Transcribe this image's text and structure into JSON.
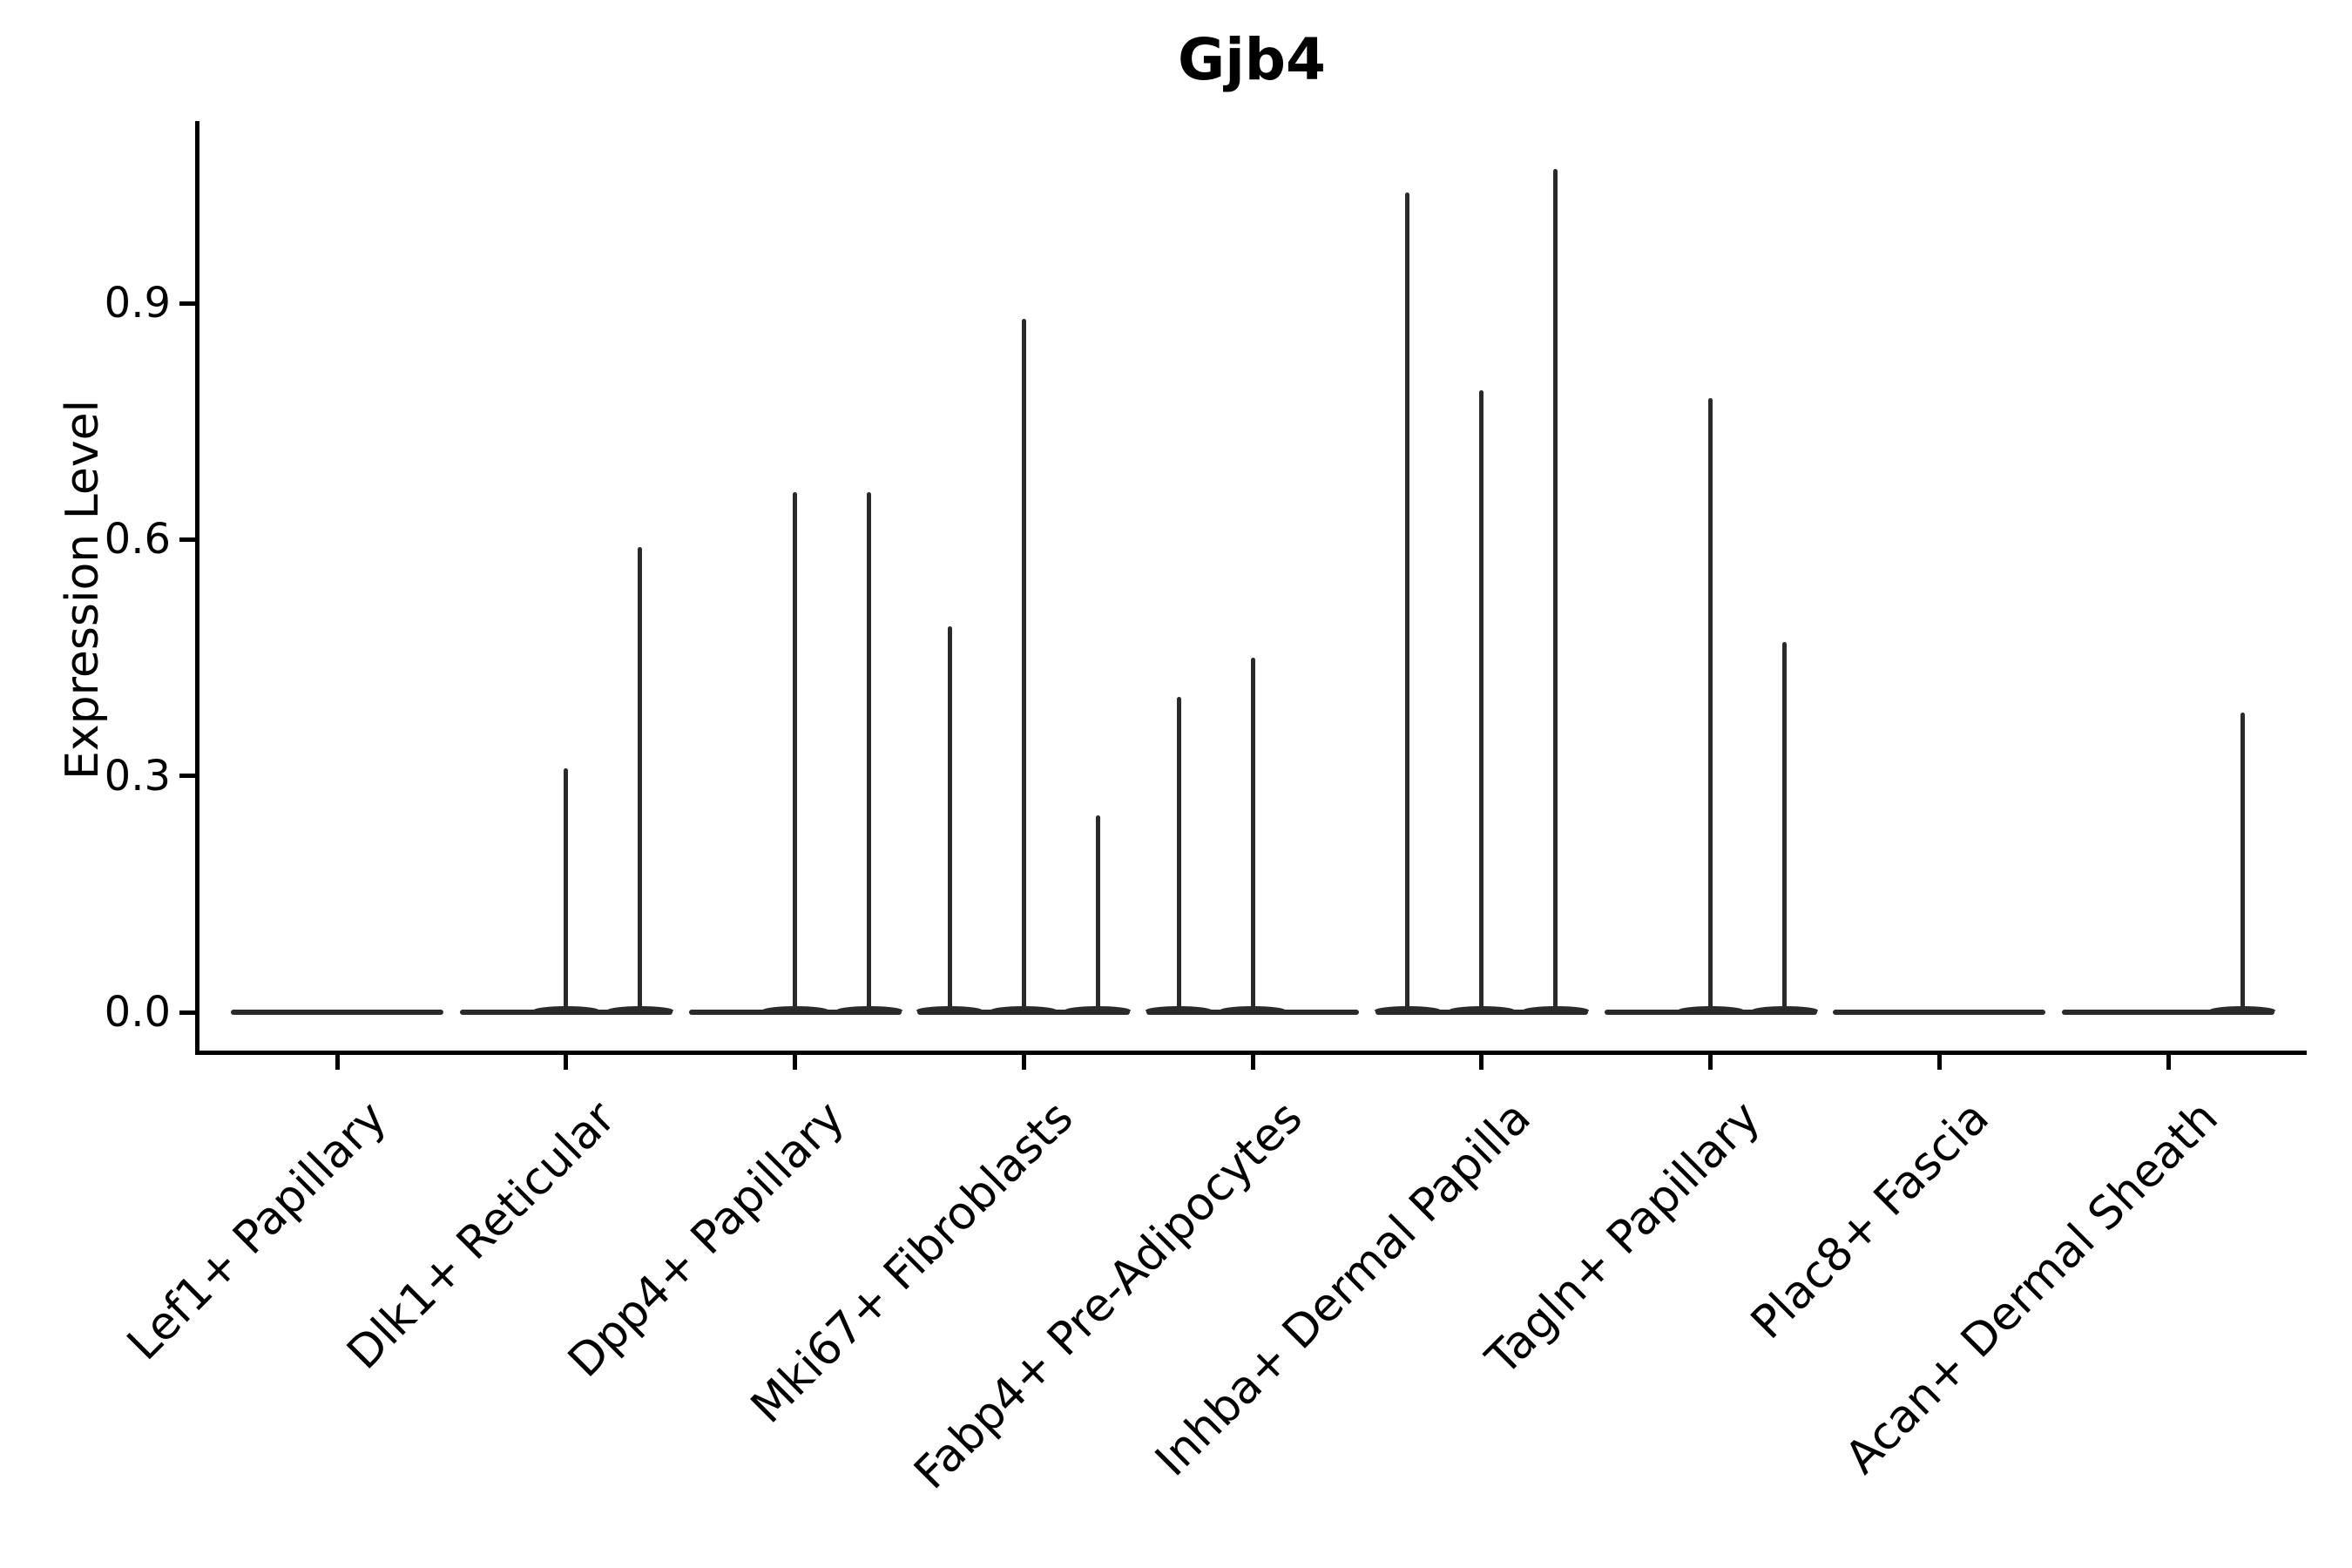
{
  "title": "Gjb4",
  "y_axis": {
    "label": "Expression Level",
    "ticks": [
      {
        "label": "0.0",
        "value": 0.0
      },
      {
        "label": "0.3",
        "value": 0.3
      },
      {
        "label": "0.6",
        "value": 0.6
      },
      {
        "label": "0.9",
        "value": 0.9
      }
    ]
  },
  "chart_data": {
    "type": "violin",
    "title": "Gjb4",
    "xlabel": "",
    "ylabel": "Expression Level",
    "ylim": [
      -0.05,
      1.13
    ],
    "yticks": [
      0.0,
      0.3,
      0.6,
      0.9
    ],
    "grid": false,
    "legend": "none",
    "x_tick_rotation": 45,
    "sub_violins_per_category": 3,
    "categories": [
      "Lef1+ Papillary",
      "Dlk1+ Reticular",
      "Dpp4+ Papillary",
      "Mki67+ Fibroblasts",
      "Fabp4+ Pre-Adipocytes",
      "Inhba+ Dermal Papilla",
      "Tagln+ Papillary",
      "Plac8+ Fascia",
      "Acan+ Dermal Sheath"
    ],
    "violins": [
      {
        "category": "Lef1+ Papillary",
        "collapsed_at_zero": true,
        "spikes": []
      },
      {
        "category": "Dlk1+ Reticular",
        "collapsed_at_zero": true,
        "spikes": [
          {
            "slot": 0,
            "max": 0.31
          },
          {
            "slot": 1,
            "max": 0.59
          }
        ]
      },
      {
        "category": "Dpp4+ Papillary",
        "collapsed_at_zero": true,
        "spikes": [
          {
            "slot": 0,
            "max": 0.66
          },
          {
            "slot": 1,
            "max": 0.66
          }
        ]
      },
      {
        "category": "Mki67+ Fibroblasts",
        "collapsed_at_zero": true,
        "spikes": [
          {
            "slot": -1,
            "max": 0.49
          },
          {
            "slot": 0,
            "max": 0.88
          },
          {
            "slot": 1,
            "max": 0.25
          }
        ]
      },
      {
        "category": "Fabp4+ Pre-Adipocytes",
        "collapsed_at_zero": true,
        "spikes": [
          {
            "slot": -1,
            "max": 0.4
          },
          {
            "slot": 0,
            "max": 0.45
          }
        ]
      },
      {
        "category": "Inhba+ Dermal Papilla",
        "collapsed_at_zero": true,
        "spikes": [
          {
            "slot": -1,
            "max": 1.04
          },
          {
            "slot": 0,
            "max": 0.79
          },
          {
            "slot": 1,
            "max": 1.07
          }
        ]
      },
      {
        "category": "Tagln+ Papillary",
        "collapsed_at_zero": true,
        "spikes": [
          {
            "slot": 0,
            "max": 0.78
          },
          {
            "slot": 1,
            "max": 0.47
          }
        ]
      },
      {
        "category": "Plac8+ Fascia",
        "collapsed_at_zero": true,
        "spikes": []
      },
      {
        "category": "Acan+ Dermal Sheath",
        "collapsed_at_zero": true,
        "spikes": [
          {
            "slot": 1,
            "max": 0.38
          }
        ]
      }
    ],
    "colors": {
      "line": "#2a2a2a",
      "axis": "#000000",
      "background": "#ffffff"
    }
  }
}
